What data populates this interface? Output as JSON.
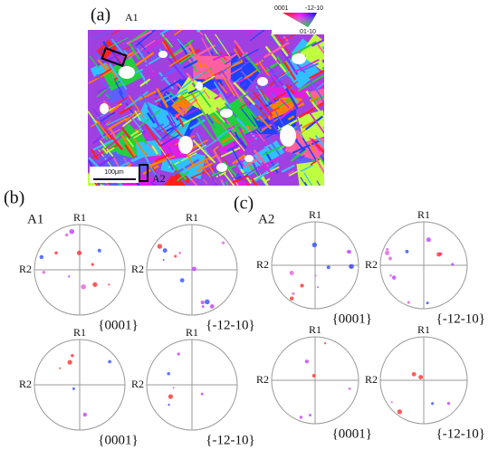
{
  "panel_a": {
    "label": "(a)",
    "regions": [
      "A1",
      "A2"
    ],
    "scale_bar": "100μm",
    "color_key": [
      "0001",
      "-12-10",
      "01-10"
    ]
  },
  "panel_b": {
    "label": "(b)",
    "region": "A1",
    "pole_figures": [
      {
        "axis_top": "R1",
        "axis_left": "R2",
        "plane": "{0001}"
      },
      {
        "axis_top": "R1",
        "axis_left": "R2",
        "plane": "{-12-10}"
      },
      {
        "axis_top": "R1",
        "axis_left": "R2",
        "plane": "{0001}"
      },
      {
        "axis_top": "R1",
        "axis_left": "R2",
        "plane": "{-12-10}"
      }
    ]
  },
  "panel_c": {
    "label": "(c)",
    "region": "A2",
    "pole_figures": [
      {
        "axis_top": "R1",
        "axis_left": "R2",
        "plane": "{0001}"
      },
      {
        "axis_top": "R1",
        "axis_left": "R2",
        "plane": "{-12-10}"
      },
      {
        "axis_top": "R1",
        "axis_left": "R2",
        "plane": "{0001}"
      },
      {
        "axis_top": "R1",
        "axis_left": "R2",
        "plane": "{-12-10}"
      }
    ]
  }
}
